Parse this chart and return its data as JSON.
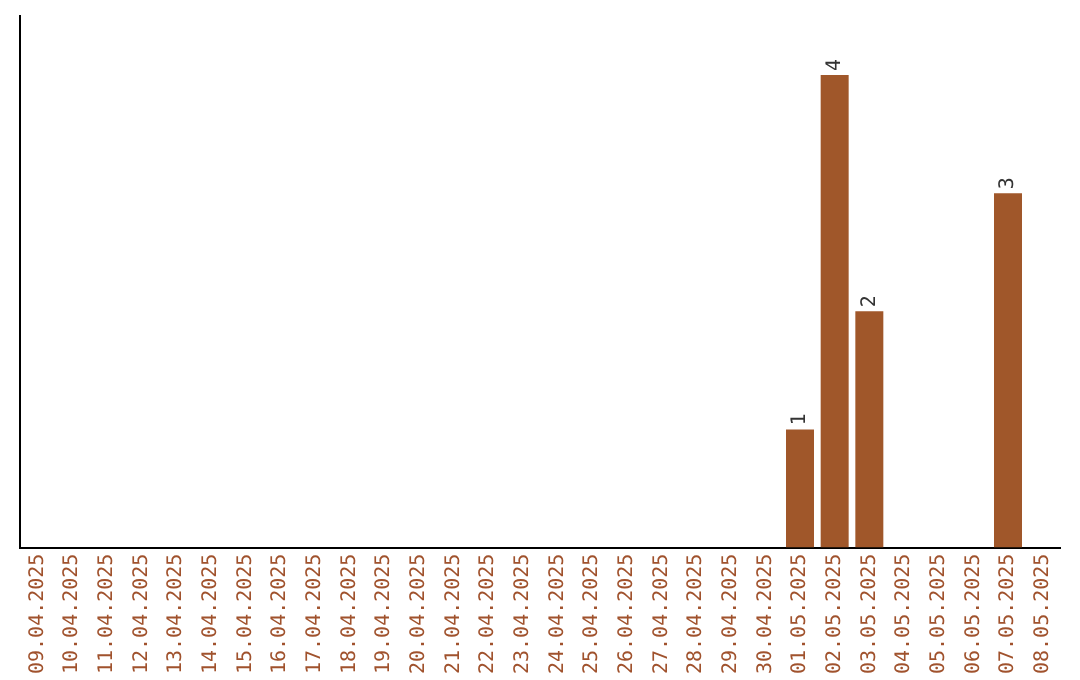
{
  "chart_data": {
    "type": "bar",
    "categories": [
      "09.04.2025",
      "10.04.2025",
      "11.04.2025",
      "12.04.2025",
      "13.04.2025",
      "14.04.2025",
      "15.04.2025",
      "16.04.2025",
      "17.04.2025",
      "18.04.2025",
      "19.04.2025",
      "20.04.2025",
      "21.04.2025",
      "22.04.2025",
      "23.04.2025",
      "24.04.2025",
      "25.04.2025",
      "26.04.2025",
      "27.04.2025",
      "28.04.2025",
      "29.04.2025",
      "30.04.2025",
      "01.05.2025",
      "02.05.2025",
      "03.05.2025",
      "04.05.2025",
      "05.05.2025",
      "06.05.2025",
      "07.05.2025",
      "08.05.2025"
    ],
    "values": [
      null,
      null,
      null,
      null,
      null,
      null,
      null,
      null,
      null,
      null,
      null,
      null,
      null,
      null,
      null,
      null,
      null,
      null,
      null,
      null,
      null,
      null,
      1,
      4,
      2,
      null,
      null,
      null,
      3,
      null
    ],
    "data_labels": true,
    "color": "#a0572a",
    "grid": false,
    "legend": false
  }
}
